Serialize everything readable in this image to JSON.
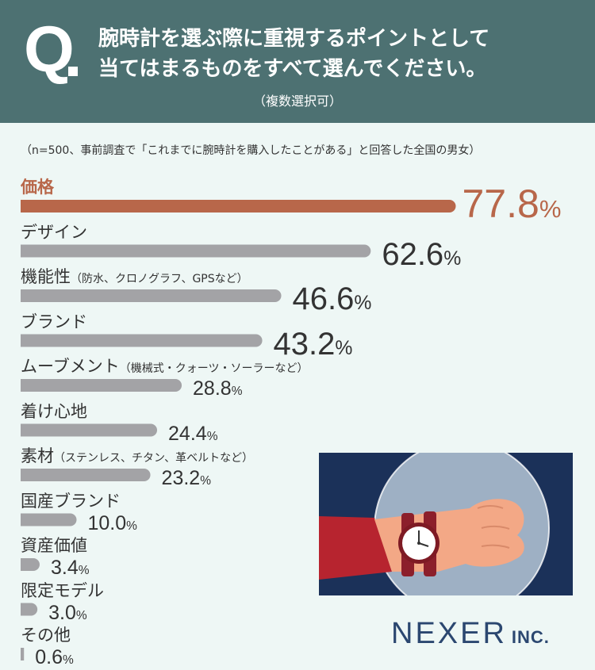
{
  "header": {
    "q_letter": "Q",
    "question_line1": "腕時計を選ぶ際に重視するポイントとして",
    "question_line2": "当てはまるものをすべて選んでください。",
    "multiple": "（複数選択可）"
  },
  "note": "（n=500、事前調査で「これまでに腕時計を購入したことがある」と回答した全国の男女）",
  "colors": {
    "header": "#4d7172",
    "top_bar": "#b8674a",
    "bar": "#a3a3a6",
    "background": "#eef7f5",
    "logo": "#2b4770"
  },
  "chart_data": {
    "type": "bar",
    "orientation": "horizontal",
    "unit": "%",
    "categories": [
      {
        "label": "価格",
        "note": "",
        "value": 77.8,
        "display": "77.8"
      },
      {
        "label": "デザイン",
        "note": "",
        "value": 62.6,
        "display": "62.6"
      },
      {
        "label": "機能性",
        "note": "（防水、クロノグラフ、GPSなど）",
        "value": 46.6,
        "display": "46.6"
      },
      {
        "label": "ブランド",
        "note": "",
        "value": 43.2,
        "display": "43.2"
      },
      {
        "label": "ムーブメント",
        "note": "（機械式・クォーツ・ソーラーなど）",
        "value": 28.8,
        "display": "28.8"
      },
      {
        "label": "着け心地",
        "note": "",
        "value": 24.4,
        "display": "24.4"
      },
      {
        "label": "素材",
        "note": "（ステンレス、チタン、革ベルトなど）",
        "value": 23.2,
        "display": "23.2"
      },
      {
        "label": "国産ブランド",
        "note": "",
        "value": 10.0,
        "display": "10.0"
      },
      {
        "label": "資産価値",
        "note": "",
        "value": 3.4,
        "display": "3.4"
      },
      {
        "label": "限定モデル",
        "note": "",
        "value": 3.0,
        "display": "3.0"
      },
      {
        "label": "その他",
        "note": "",
        "value": 0.6,
        "display": "0.6"
      }
    ]
  },
  "logo": {
    "main": "NEXER",
    "inc": "INC."
  },
  "illustration": {
    "icon": "wristwatch-on-arm-icon"
  }
}
